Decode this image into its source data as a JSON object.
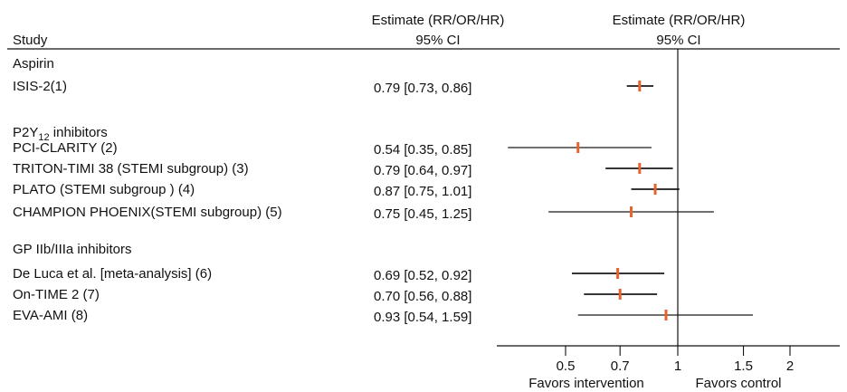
{
  "chart_data": {
    "type": "forest",
    "scale": "log",
    "reference_line": 1,
    "xlim": [
      0.25,
      2.5
    ],
    "header": {
      "study_label": "Study",
      "estimate_col_line1": "Estimate (RR/OR/HR)",
      "estimate_col_line2": "95% CI",
      "plot_col_line1": "Estimate (RR/OR/HR)",
      "plot_col_line2": "95% CI"
    },
    "groups": [
      {
        "label": "Aspirin",
        "label_sub": "",
        "label_after": "",
        "rows": [
          {
            "study": "ISIS-2(1)",
            "ci_text": "0.79 [0.73, 0.86]",
            "estimate": 0.79,
            "lower": 0.73,
            "upper": 0.86
          }
        ]
      },
      {
        "label": "P2Y",
        "label_sub": "12",
        "label_after": " inhibitors",
        "rows": [
          {
            "study": "PCI-CLARITY (2)",
            "ci_text": "0.54 [0.35, 0.85]",
            "estimate": 0.54,
            "lower": 0.35,
            "upper": 0.85
          },
          {
            "study": "TRITON-TIMI 38 (STEMI subgroup) (3)",
            "ci_text": "0.79 [0.64, 0.97]",
            "estimate": 0.79,
            "lower": 0.64,
            "upper": 0.97
          },
          {
            "study": "PLATO (STEMI subgroup ) (4)",
            "ci_text": "0.87 [0.75, 1.01]",
            "estimate": 0.87,
            "lower": 0.75,
            "upper": 1.01
          },
          {
            "study": "CHAMPION PHOENIX(STEMI subgroup) (5)",
            "ci_text": "0.75 [0.45, 1.25]",
            "estimate": 0.75,
            "lower": 0.45,
            "upper": 1.25
          }
        ]
      },
      {
        "label": "GP IIb/IIIa inhibitors",
        "label_sub": "",
        "label_after": "",
        "rows": [
          {
            "study": "De Luca et al. [meta-analysis] (6)",
            "ci_text": "0.69 [0.52, 0.92]",
            "estimate": 0.69,
            "lower": 0.52,
            "upper": 0.92
          },
          {
            "study": "On-TIME 2 (7)",
            "ci_text": "0.70 [0.56, 0.88]",
            "estimate": 0.7,
            "lower": 0.56,
            "upper": 0.88
          },
          {
            "study": "EVA-AMI (8)",
            "ci_text": "0.93 [0.54, 1.59]",
            "estimate": 0.93,
            "lower": 0.54,
            "upper": 1.59
          }
        ]
      }
    ],
    "x_ticks": [
      0.5,
      0.7,
      1,
      1.5,
      2
    ],
    "x_tick_labels": [
      "0.5",
      "0.7",
      "1",
      "1.5",
      "2"
    ],
    "favors_left": "Favors intervention",
    "favors_right": "Favors control",
    "colors": {
      "point": "#e8632b",
      "ci_line": "#1a1a1a",
      "text": "#111111"
    }
  }
}
